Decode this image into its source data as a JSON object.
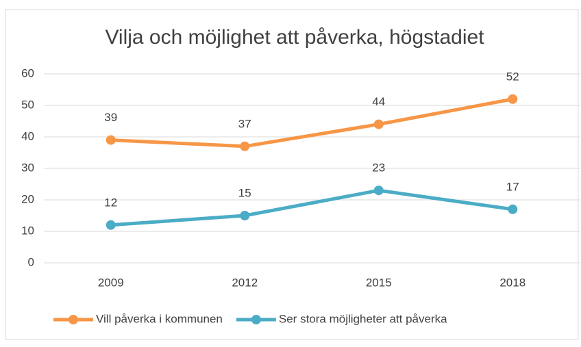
{
  "chart_data": {
    "type": "line",
    "title": "Vilja och möjlighet att påverka, högstadiet",
    "categories": [
      "2009",
      "2012",
      "2015",
      "2018"
    ],
    "series": [
      {
        "name": "Vill påverka i kommunen",
        "color": "#f79646",
        "values": [
          39,
          37,
          44,
          52
        ]
      },
      {
        "name": "Ser stora möjligheter att påverka",
        "color": "#4bacc6",
        "values": [
          12,
          15,
          23,
          17
        ]
      }
    ],
    "ylim": [
      0,
      60
    ],
    "yticks": [
      0,
      10,
      20,
      30,
      40,
      50,
      60
    ],
    "grid": true,
    "legend": "bottom"
  }
}
